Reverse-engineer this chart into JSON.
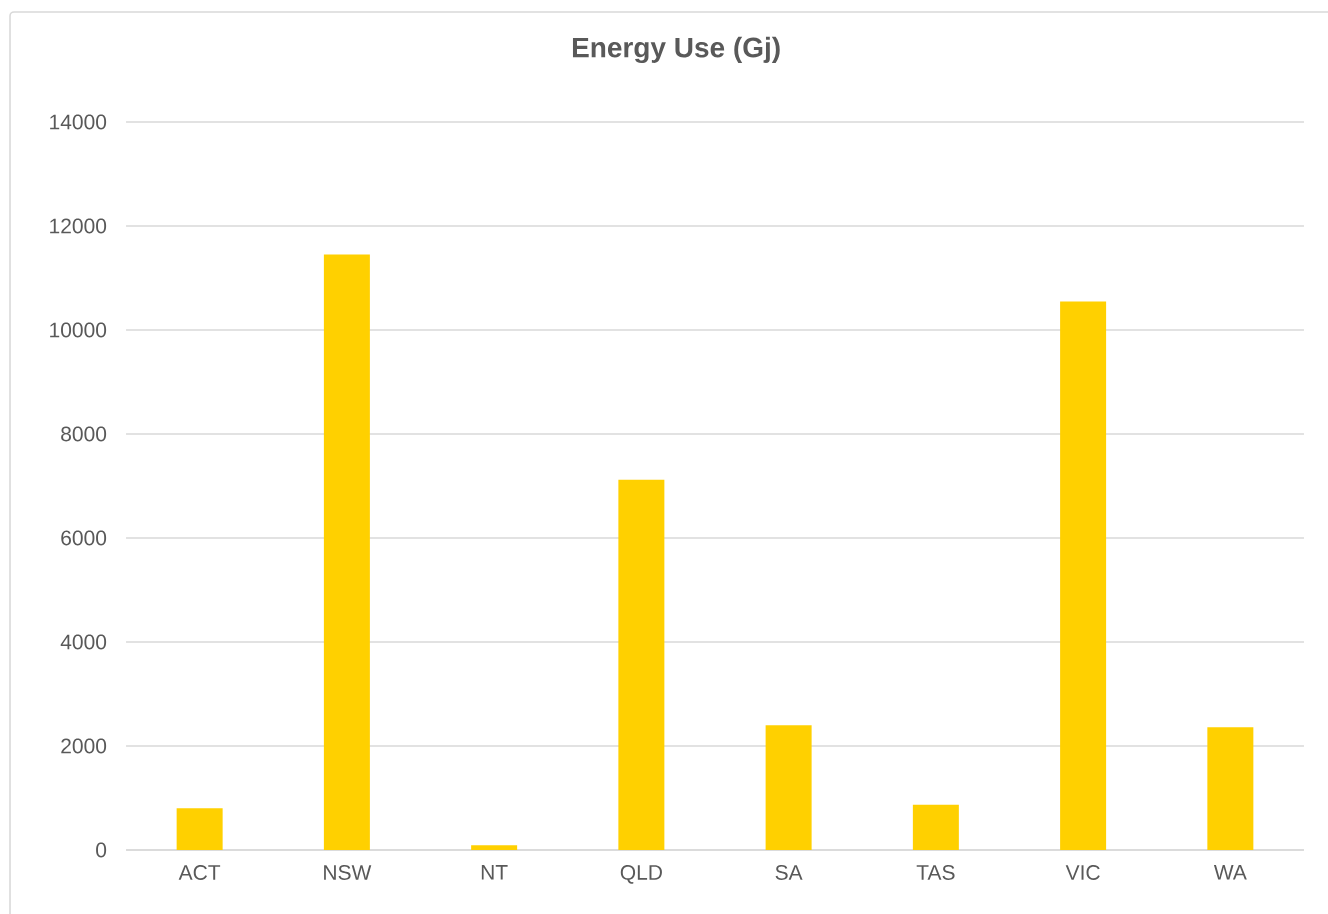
{
  "chart_data": {
    "type": "bar",
    "title": "Energy Use (Gj)",
    "categories": [
      "ACT",
      "NSW",
      "NT",
      "QLD",
      "SA",
      "TAS",
      "VIC",
      "WA"
    ],
    "values": [
      800,
      11450,
      90,
      7120,
      2400,
      870,
      10550,
      2360
    ],
    "color": "#ffd000",
    "ylim": [
      0,
      14000
    ],
    "yticks": [
      0,
      2000,
      4000,
      6000,
      8000,
      10000,
      12000,
      14000
    ],
    "grid": "y"
  }
}
